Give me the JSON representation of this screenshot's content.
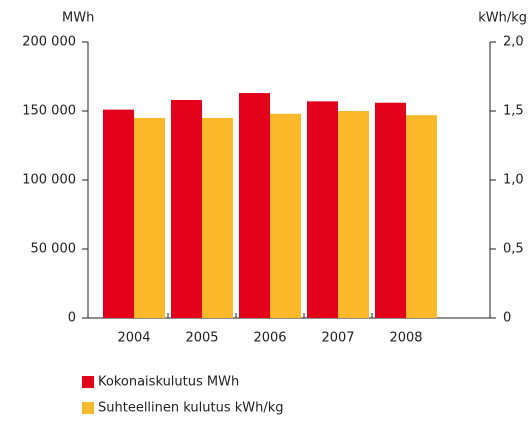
{
  "chart_data": {
    "type": "bar",
    "y_label": "MWh",
    "y2_label": "kWh/kg",
    "categories": [
      "2004",
      "2005",
      "2006",
      "2007",
      "2008"
    ],
    "series": [
      {
        "name": "Kokonaiskulutus MWh",
        "color": "#e2001a",
        "values": [
          151000,
          158000,
          163000,
          157000,
          156000
        ]
      },
      {
        "name": "Suhteellinen kulutus kWh/kg",
        "color": "#fbb829",
        "axis": "y2",
        "values": [
          1.45,
          1.45,
          1.48,
          1.5,
          1.47
        ]
      }
    ],
    "ylim": [
      0,
      200000
    ],
    "yticks": [
      0,
      {
        "value": 50000,
        "label": "50 000"
      },
      {
        "value": 100000,
        "label": "100 000"
      },
      {
        "value": 150000,
        "label": "150 000"
      },
      {
        "value": 200000,
        "label": "200 000"
      }
    ],
    "y2lim": [
      0,
      2
    ],
    "y2ticks": [
      0,
      {
        "value": 0.5,
        "label": "0,5"
      },
      {
        "value": 1,
        "label": "1,0"
      },
      {
        "value": 1.5,
        "label": "1,5"
      },
      {
        "value": 2,
        "label": "2,0"
      }
    ],
    "grid": false
  }
}
